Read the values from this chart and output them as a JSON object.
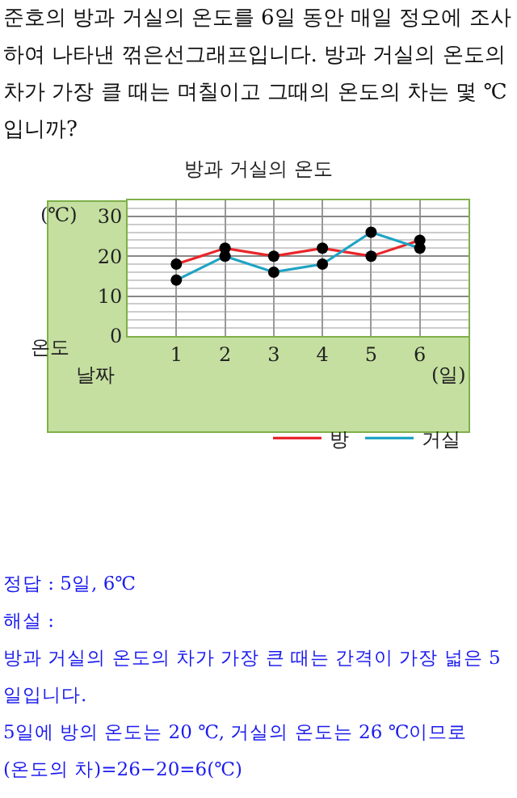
{
  "chart_data": {
    "type": "line",
    "title": "방과 거실의 온도",
    "annotations": [
      "준호의 방과 거실의 온도를 6일 동안 매일 정오에 조사하여 나타낸 꺾은선그래프입니다. 방과 거실의 온도의 차가 가장 클 때는 며칠이고 그때의 온도의 차는 몇 ℃ 입니까?",
      "온도",
      "날짜",
      "정답 : 5일, 6℃",
      "해설 :",
      "방과 거실의 온도의 차가 가장 큰 때는 간격이 가장 넓은 5일입니다.",
      "5일에 방의 온도는 20 ℃, 거실의 온도는 26 ℃이므로",
      "(온도의 차)=26−20=6(℃)"
    ],
    "xlabel": "(일)",
    "ylabel": "(℃)",
    "x": [
      1,
      2,
      3,
      4,
      5,
      6
    ],
    "series": [
      {
        "name": "방",
        "color": "#e8262b",
        "values": [
          18,
          22,
          20,
          22,
          20,
          24
        ]
      },
      {
        "name": "거실",
        "color": "#1fa3c4",
        "values": [
          14,
          20,
          16,
          18,
          26,
          22
        ]
      }
    ],
    "xlim": [
      0,
      7
    ],
    "xticks": [
      1,
      2,
      3,
      4,
      5,
      6
    ],
    "ylim": [
      0,
      34
    ],
    "yticks": [
      0,
      10,
      20,
      30
    ],
    "grid": true,
    "legend": "bottom right",
    "marker": "circle",
    "line_style": "solid"
  }
}
